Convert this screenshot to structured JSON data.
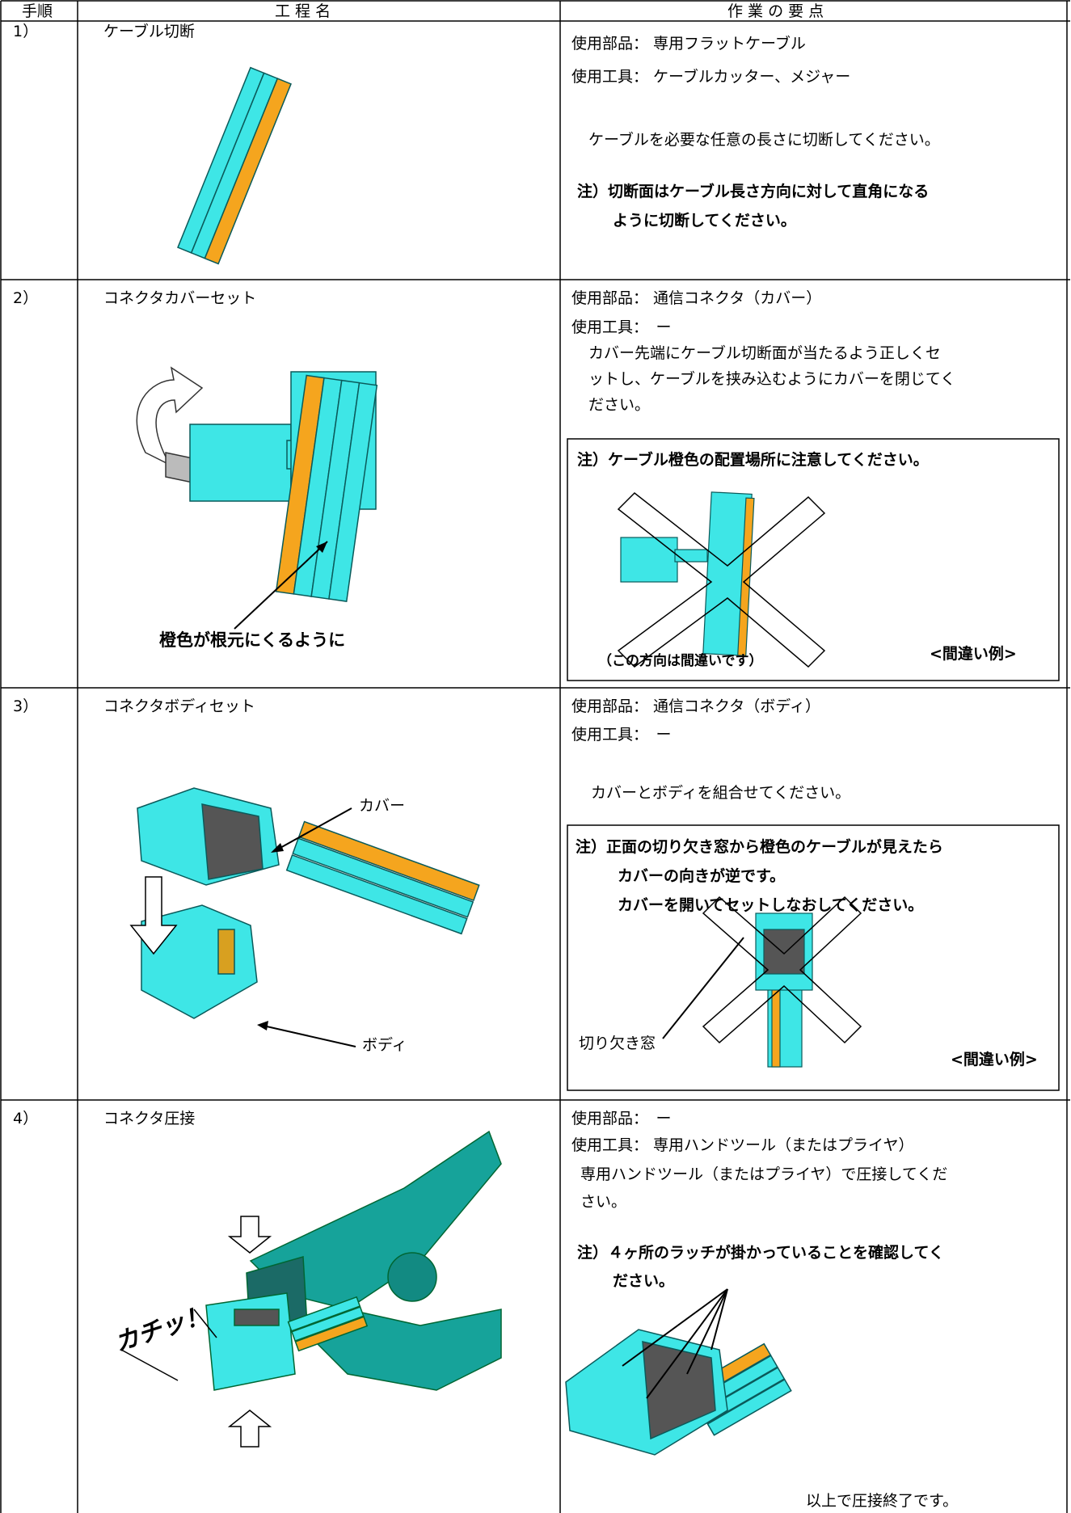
{
  "table": {
    "header": [
      "手順",
      "工 程 名",
      "作 業 の 要 点"
    ],
    "rows": [
      {
        "step": "1）",
        "process": "ケーブル切断",
        "parts": "使用部品： 専用フラットケーブル",
        "tools": "使用工具： ケーブルカッター、メジャー",
        "instruction": [
          "ケーブルを必要な任意の長さに切断してください。"
        ],
        "note": [
          "注）切断面はケーブル長さ方向に対して直角になる",
          "ように切断してください。"
        ]
      },
      {
        "step": "2）",
        "process": "コネクタカバーセット",
        "parts": "使用部品： 通信コネクタ（カバー）",
        "tools": "使用工具：　ー",
        "instruction": [
          "カバー先端にケーブル切断面が当たるよう正しくセ",
          "ットし、ケーブルを挟み込むようにカバーを閉じてく",
          "ださい。"
        ],
        "note": [
          "注）ケーブル橙色の配置場所に注意してください。"
        ],
        "callout": "橙色が根元にくるように",
        "caption": "（この方向は間違いです）",
        "wrong_label": "<間違い例>"
      },
      {
        "step": "3）",
        "process": "コネクタボディセット",
        "parts": "使用部品： 通信コネクタ（ボディ）",
        "tools": "使用工具：　ー",
        "instruction": [
          "カバーとボディを組合せてください。"
        ],
        "note": [
          "注）正面の切り欠き窓から橙色のケーブルが見えたら",
          "カバーの向きが逆です。",
          "カバーを開いてセットしなおしてください。"
        ],
        "cover_label": "カバー",
        "body_label": "ボディ",
        "window_label": "切り欠き窓",
        "wrong_label": "<間違い例>"
      },
      {
        "step": "4）",
        "process": "コネクタ圧接",
        "parts": "使用部品：　ー",
        "tools": "使用工具： 専用ハンドツール（またはプライヤ）",
        "instruction": [
          "専用ハンドツール（またはプライヤ）で圧接してくだ",
          "さい。"
        ],
        "note": [
          "注）４ヶ所のラッチが掛かっていることを確認してく",
          "ださい。"
        ],
        "sound": "カチッ！",
        "closing": "以上で圧接終了です。"
      }
    ]
  }
}
